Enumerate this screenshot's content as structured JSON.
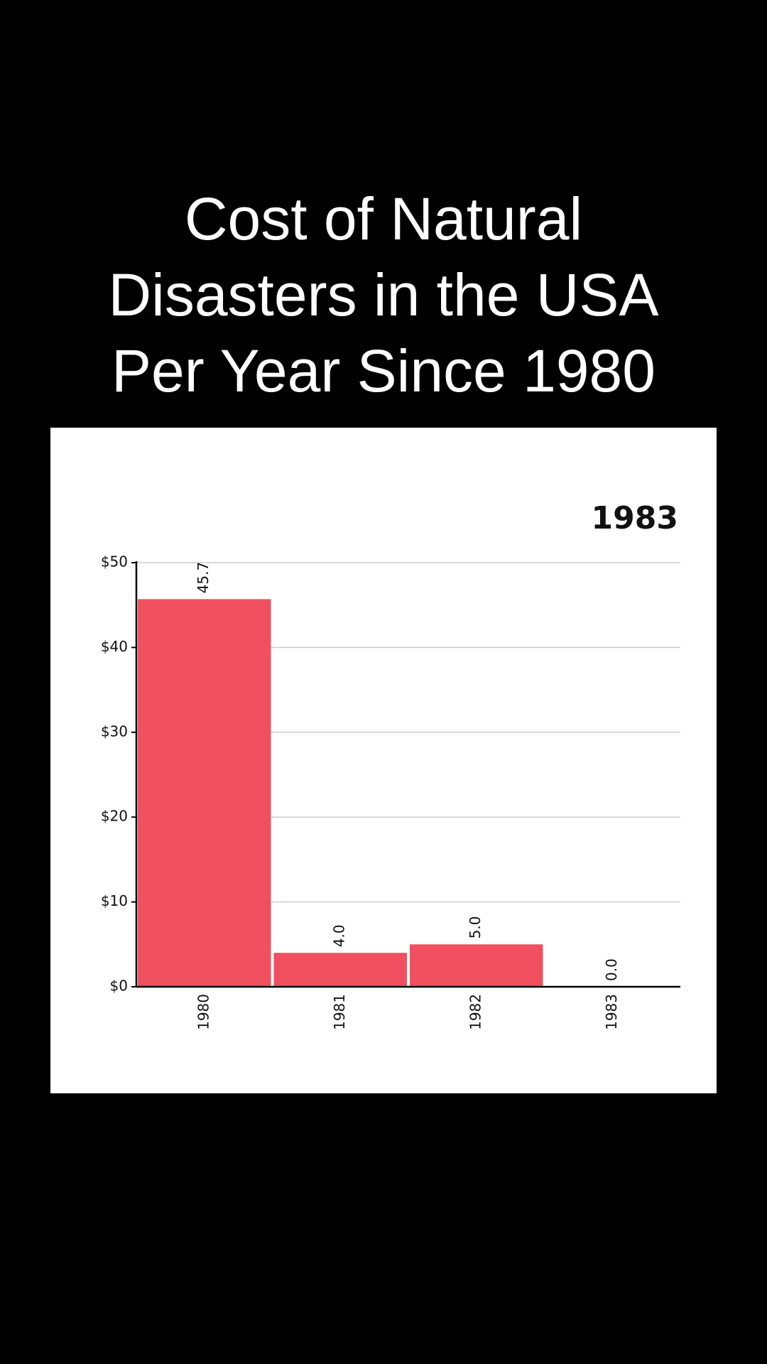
{
  "chart_data": {
    "type": "bar",
    "title": "Cost of Natural Disasters in the USA Per Year Since 1980",
    "annotation": "1983",
    "categories": [
      "1980",
      "1981",
      "1982",
      "1983"
    ],
    "values": [
      45.7,
      4.0,
      5.0,
      0.0
    ],
    "value_labels": [
      "45.7",
      "4.0",
      "5.0",
      "0.0"
    ],
    "color": "#f0505f",
    "ylim": [
      0,
      50
    ],
    "yticks": [
      {
        "value": 0,
        "label": "$0"
      },
      {
        "value": 10,
        "label": "$10"
      },
      {
        "value": 20,
        "label": "$20"
      },
      {
        "value": 30,
        "label": "$30"
      },
      {
        "value": 40,
        "label": "$40"
      },
      {
        "value": 50,
        "label": "$50"
      }
    ],
    "grid": true
  }
}
